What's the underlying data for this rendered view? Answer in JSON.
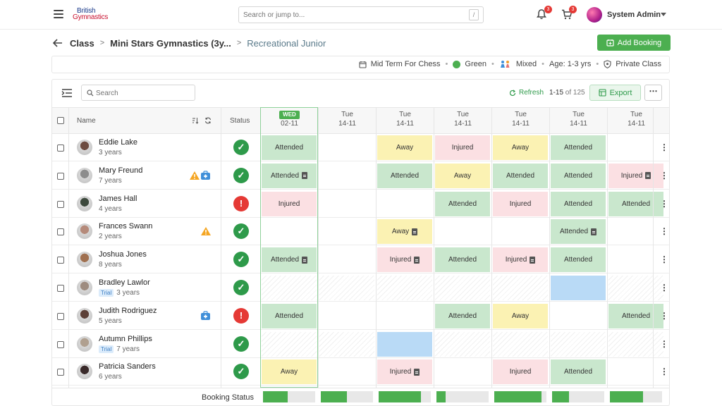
{
  "app": {
    "logo_line1": "British",
    "logo_line2": "Gymnastics",
    "search_placeholder": "Search or jump to...",
    "search_shortcut": "/",
    "notifications_count": "3",
    "cart_count": "3",
    "user_name": "System Admin"
  },
  "breadcrumb": {
    "items": [
      "Class",
      "Mini Stars Gymnastics (3y...",
      "Recreational Junior"
    ]
  },
  "add_booking_label": "Add Booking",
  "info": {
    "term": "Mid Term For Chess",
    "color": "Green",
    "gender": "Mixed",
    "age": "Age: 1-3 yrs",
    "class_type": "Private Class"
  },
  "toolbar": {
    "search_placeholder": "Search",
    "refresh_label": "Refresh",
    "range": "1-15",
    "range_of": "of 125",
    "export_label": "Export",
    "more_label": "⋯"
  },
  "table": {
    "col_name": "Name",
    "col_status": "Status",
    "dates": [
      {
        "day": "WED",
        "date": "02-11",
        "today": true
      },
      {
        "day": "Tue",
        "date": "14-11"
      },
      {
        "day": "Tue",
        "date": "14-11"
      },
      {
        "day": "Tue",
        "date": "14-11"
      },
      {
        "day": "Tue",
        "date": "14-11"
      },
      {
        "day": "Tue",
        "date": "14-11"
      },
      {
        "day": "Tue",
        "date": "14-11"
      }
    ],
    "rows": [
      {
        "name": "Eddie Lake",
        "age": "3 years",
        "trial": false,
        "status": "ok",
        "flags": [],
        "cells": [
          [
            "Attended",
            false
          ],
          [
            "",
            false
          ],
          [
            "Away",
            false
          ],
          [
            "Injured",
            false
          ],
          [
            "Away",
            false
          ],
          [
            "Attended",
            false
          ],
          [
            "",
            false
          ]
        ]
      },
      {
        "name": "Mary Freund",
        "age": "7 years",
        "trial": false,
        "status": "ok",
        "flags": [
          "warning",
          "medical"
        ],
        "cells": [
          [
            "Attended",
            true
          ],
          [
            "",
            false
          ],
          [
            "Attended",
            false
          ],
          [
            "Away",
            false
          ],
          [
            "Attended",
            false
          ],
          [
            "Attended",
            false
          ],
          [
            "Injured",
            true
          ]
        ]
      },
      {
        "name": "James Hall",
        "age": "4 years",
        "trial": false,
        "status": "bad",
        "flags": [],
        "cells": [
          [
            "Injured",
            false
          ],
          [
            "",
            false
          ],
          [
            "",
            false
          ],
          [
            "Attended",
            false
          ],
          [
            "Injured",
            false
          ],
          [
            "Attended",
            false
          ],
          [
            "Attended",
            false
          ]
        ]
      },
      {
        "name": "Frances Swann",
        "age": "2 years",
        "trial": false,
        "status": "ok",
        "flags": [
          "warning"
        ],
        "cells": [
          [
            "",
            false
          ],
          [
            "",
            false
          ],
          [
            "Away",
            true
          ],
          [
            "",
            false
          ],
          [
            "",
            false
          ],
          [
            "Attended",
            true
          ],
          [
            "",
            false
          ]
        ]
      },
      {
        "name": "Joshua Jones",
        "age": "8 years",
        "trial": false,
        "status": "ok",
        "flags": [],
        "cells": [
          [
            "Attended",
            true
          ],
          [
            "",
            false
          ],
          [
            "Injured",
            true
          ],
          [
            "Attended",
            false
          ],
          [
            "Injured",
            true
          ],
          [
            "Attended",
            false
          ],
          [
            "",
            false
          ]
        ]
      },
      {
        "name": "Bradley Lawlor",
        "age": "3 years",
        "trial": true,
        "trial_label": "Trial",
        "status": "ok",
        "flags": [],
        "cells": [
          [
            "Hatch",
            false
          ],
          [
            "Hatch",
            false
          ],
          [
            "Hatch",
            false
          ],
          [
            "Hatch",
            false
          ],
          [
            "Hatch",
            false
          ],
          [
            "Blue",
            false
          ],
          [
            "Hatch",
            false
          ]
        ]
      },
      {
        "name": "Judith Rodriguez",
        "age": "5 years",
        "trial": false,
        "status": "bad",
        "flags": [
          "medical"
        ],
        "cells": [
          [
            "Attended",
            false
          ],
          [
            "",
            false
          ],
          [
            "",
            false
          ],
          [
            "Attended",
            false
          ],
          [
            "Away",
            false
          ],
          [
            "",
            false
          ],
          [
            "Attended",
            false
          ]
        ]
      },
      {
        "name": "Autumn Phillips",
        "age": "7 years",
        "trial": true,
        "trial_label": "Trial",
        "status": "ok",
        "flags": [],
        "cells": [
          [
            "Hatch",
            false
          ],
          [
            "Hatch",
            false
          ],
          [
            "Blue",
            false
          ],
          [
            "Hatch",
            false
          ],
          [
            "Hatch",
            false
          ],
          [
            "Hatch",
            false
          ],
          [
            "Hatch",
            false
          ]
        ]
      },
      {
        "name": "Patricia Sanders",
        "age": "6 years",
        "trial": false,
        "status": "ok",
        "flags": [],
        "cells": [
          [
            "Away",
            false
          ],
          [
            "",
            false
          ],
          [
            "Injured",
            true
          ],
          [
            "",
            false
          ],
          [
            "Injured",
            false
          ],
          [
            "Attended",
            false
          ],
          [
            "",
            false
          ]
        ]
      }
    ]
  },
  "booking_status": {
    "label": "Booking Status",
    "fill_fractions": [
      0.47,
      0.5,
      0.81,
      0.17,
      0.9,
      0.33,
      0.64
    ]
  },
  "avatar_colors": [
    "#6d4c41",
    "#8d8d8d",
    "#3e4a3e",
    "#b58a7a",
    "#a07050",
    "#9e8c80",
    "#5d4037",
    "#b0a090",
    "#3a2a2a"
  ]
}
